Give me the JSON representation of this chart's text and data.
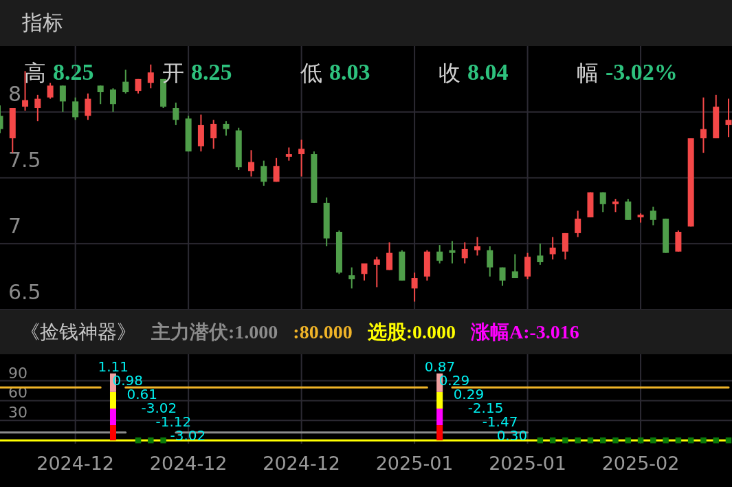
{
  "chart_data": [
    {
      "type": "candlestick",
      "title": "指标",
      "annotations": [
        "高 8.25",
        "开 8.25",
        "低 8.03",
        "收 8.04",
        "幅 -3.02%"
      ],
      "categories": [
        null,
        null,
        null,
        null,
        null,
        null,
        "2024-12",
        null,
        null,
        null,
        null,
        null,
        null,
        null,
        null,
        "2024-12",
        null,
        null,
        null,
        null,
        null,
        null,
        null,
        null,
        "2024-12",
        null,
        null,
        null,
        null,
        null,
        null,
        null,
        null,
        "2025-01",
        null,
        null,
        null,
        null,
        null,
        null,
        null,
        null,
        "2025-01",
        null,
        null,
        null,
        null,
        null,
        null,
        null,
        null,
        "2025-02",
        null,
        null,
        null,
        null,
        null,
        null,
        null
      ],
      "ohlc": [
        [
          7.97,
          8.05,
          7.84,
          7.87
        ],
        [
          7.8,
          8.03,
          7.69,
          8.03
        ],
        [
          8.04,
          8.31,
          8.01,
          8.09
        ],
        [
          8.03,
          8.13,
          7.93,
          8.1
        ],
        [
          8.11,
          8.22,
          8.1,
          8.2
        ],
        [
          8.2,
          8.2,
          8.0,
          8.08
        ],
        [
          8.08,
          8.11,
          7.94,
          7.96
        ],
        [
          7.97,
          8.14,
          7.94,
          8.1
        ],
        [
          8.2,
          8.2,
          8.06,
          8.15
        ],
        [
          8.17,
          8.18,
          8.0,
          8.06
        ],
        [
          8.23,
          8.32,
          8.14,
          8.15
        ],
        [
          8.16,
          8.25,
          8.14,
          8.25
        ],
        [
          8.22,
          8.36,
          8.18,
          8.3
        ],
        [
          8.25,
          8.25,
          8.03,
          8.04
        ],
        [
          8.03,
          8.07,
          7.9,
          7.94
        ],
        [
          7.95,
          7.97,
          7.7,
          7.7
        ],
        [
          7.74,
          7.98,
          7.7,
          7.9
        ],
        [
          7.8,
          7.94,
          7.72,
          7.91
        ],
        [
          7.91,
          7.93,
          7.82,
          7.87
        ],
        [
          7.86,
          7.88,
          7.56,
          7.58
        ],
        [
          7.55,
          7.71,
          7.51,
          7.62
        ],
        [
          7.59,
          7.63,
          7.44,
          7.47
        ],
        [
          7.47,
          7.65,
          7.47,
          7.59
        ],
        [
          7.66,
          7.73,
          7.63,
          7.68
        ],
        [
          7.68,
          7.79,
          7.51,
          7.72
        ],
        [
          7.68,
          7.7,
          7.31,
          7.31
        ],
        [
          7.31,
          7.35,
          6.98,
          7.04
        ],
        [
          7.09,
          7.1,
          6.77,
          6.78
        ],
        [
          6.76,
          6.82,
          6.66,
          6.73
        ],
        [
          6.77,
          6.85,
          6.72,
          6.85
        ],
        [
          6.84,
          6.9,
          6.67,
          6.88
        ],
        [
          6.8,
          7.01,
          6.8,
          6.93
        ],
        [
          6.94,
          6.95,
          6.72,
          6.72
        ],
        [
          6.66,
          6.78,
          6.56,
          6.74
        ],
        [
          6.75,
          6.95,
          6.72,
          6.94
        ],
        [
          6.94,
          6.99,
          6.85,
          6.87
        ],
        [
          6.95,
          7.02,
          6.85,
          6.93
        ],
        [
          6.89,
          7.01,
          6.85,
          6.96
        ],
        [
          6.95,
          7.05,
          6.91,
          6.98
        ],
        [
          6.95,
          6.98,
          6.75,
          6.82
        ],
        [
          6.82,
          6.82,
          6.68,
          6.72
        ],
        [
          6.79,
          6.92,
          6.74,
          6.74
        ],
        [
          6.75,
          6.93,
          6.73,
          6.9
        ],
        [
          6.91,
          7.0,
          6.84,
          6.86
        ],
        [
          6.92,
          7.05,
          6.88,
          6.97
        ],
        [
          6.94,
          7.08,
          6.88,
          7.08
        ],
        [
          7.08,
          7.25,
          7.05,
          7.19
        ],
        [
          7.2,
          7.39,
          7.2,
          7.39
        ],
        [
          7.39,
          7.39,
          7.24,
          7.3
        ],
        [
          7.3,
          7.34,
          7.24,
          7.32
        ],
        [
          7.32,
          7.34,
          7.18,
          7.18
        ],
        [
          7.2,
          7.23,
          7.16,
          7.22
        ],
        [
          7.25,
          7.28,
          7.14,
          7.18
        ],
        [
          7.19,
          7.19,
          6.93,
          6.93
        ],
        [
          6.94,
          7.1,
          6.94,
          7.09
        ],
        [
          7.13,
          7.8,
          7.13,
          7.8
        ],
        [
          7.8,
          8.11,
          7.69,
          7.87
        ],
        [
          7.8,
          8.13,
          7.8,
          8.04
        ],
        [
          7.9,
          8.1,
          7.81,
          7.94
        ]
      ],
      "ylim": [
        6.5,
        8.5
      ],
      "yticks": [
        6.5,
        7,
        7.5,
        8
      ],
      "grid": true,
      "tick_labels": "y"
    },
    {
      "type": "line",
      "title": "《捡钱神器》",
      "categories": [
        null,
        null,
        null,
        null,
        null,
        null,
        "2024-12",
        null,
        null,
        null,
        null,
        null,
        null,
        null,
        null,
        "2024-12",
        null,
        null,
        null,
        null,
        null,
        null,
        null,
        null,
        "2024-12",
        null,
        null,
        null,
        null,
        null,
        null,
        null,
        null,
        "2025-01",
        null,
        null,
        null,
        null,
        null,
        null,
        null,
        null,
        "2025-01",
        null,
        null,
        null,
        null,
        null,
        null,
        null,
        null,
        "2025-02",
        null,
        null,
        null,
        null,
        null,
        null,
        null
      ],
      "series": [
        {
          "type": "line",
          "name": "主力潜伏:1.000",
          "color": "#8c8c8c",
          "values": [
            12,
            12,
            12,
            12,
            12,
            12,
            12,
            12,
            12,
            12,
            12,
            null,
            null,
            null,
            12,
            12,
            12,
            12,
            12,
            12,
            12,
            12,
            12,
            12,
            12,
            12,
            12,
            12,
            12,
            12,
            12,
            12,
            12,
            12,
            12,
            12,
            12,
            12,
            12,
            12,
            12,
            12,
            12,
            null,
            null,
            null,
            null,
            null,
            null,
            null,
            null,
            null,
            null,
            null,
            null,
            null,
            null,
            null,
            null
          ]
        },
        {
          "type": "line",
          "name": ":80.000",
          "color": "#f0b428",
          "values": [
            80,
            80,
            80,
            80,
            80,
            80,
            80,
            80,
            80,
            null,
            80,
            80,
            80,
            80,
            80,
            80,
            80,
            80,
            80,
            80,
            80,
            80,
            80,
            80,
            80,
            80,
            80,
            80,
            80,
            80,
            80,
            80,
            80,
            80,
            80,
            null,
            80,
            80,
            80,
            80,
            80,
            80,
            80,
            80,
            80,
            80,
            80,
            80,
            80,
            80,
            80,
            80,
            80,
            80,
            80,
            80,
            80,
            80,
            80
          ]
        },
        {
          "type": "line",
          "name": "选股:0.000",
          "color": "#ffff00",
          "values": [
            0,
            0,
            0,
            0,
            0,
            0,
            0,
            0,
            0,
            0,
            0,
            0,
            0,
            0,
            0,
            0,
            0,
            0,
            0,
            0,
            0,
            0,
            0,
            0,
            0,
            0,
            0,
            0,
            0,
            0,
            0,
            0,
            0,
            0,
            0,
            0,
            0,
            0,
            0,
            0,
            0,
            0,
            0,
            0,
            0,
            0,
            0,
            0,
            0,
            0,
            0,
            0,
            0,
            0,
            0,
            0,
            0,
            0,
            0
          ]
        },
        {
          "type": "bar",
          "color": "#ff0000",
          "values": [
            null,
            null,
            null,
            null,
            null,
            null,
            null,
            null,
            null,
            23,
            null,
            null,
            null,
            null,
            null,
            null,
            null,
            null,
            null,
            null,
            null,
            null,
            null,
            null,
            null,
            null,
            null,
            null,
            null,
            null,
            null,
            null,
            null,
            null,
            null,
            23,
            null,
            null,
            null,
            null,
            null,
            null,
            null,
            null,
            null,
            null,
            null,
            null,
            null,
            null,
            null,
            null,
            null,
            null,
            null,
            null,
            null,
            null,
            null
          ]
        },
        {
          "type": "bar",
          "name": "涨幅A:-3.016",
          "color": "#ff00ff",
          "values": [
            null,
            null,
            null,
            null,
            null,
            null,
            null,
            null,
            null,
            25,
            null,
            null,
            null,
            null,
            null,
            null,
            null,
            null,
            null,
            null,
            null,
            null,
            null,
            null,
            null,
            null,
            null,
            null,
            null,
            null,
            null,
            null,
            null,
            null,
            null,
            25,
            null,
            null,
            null,
            null,
            null,
            null,
            null,
            null,
            null,
            null,
            null,
            null,
            null,
            null,
            null,
            null,
            null,
            null,
            null,
            null,
            null,
            null,
            null
          ]
        },
        {
          "type": "bar",
          "color": "#ffff00",
          "values": [
            null,
            null,
            null,
            null,
            null,
            null,
            null,
            null,
            null,
            25,
            null,
            null,
            null,
            null,
            null,
            null,
            null,
            null,
            null,
            null,
            null,
            null,
            null,
            null,
            null,
            null,
            null,
            null,
            null,
            null,
            null,
            null,
            null,
            null,
            null,
            25,
            null,
            null,
            null,
            null,
            null,
            null,
            null,
            null,
            null,
            null,
            null,
            null,
            null,
            null,
            null,
            null,
            null,
            null,
            null,
            null,
            null,
            null,
            null
          ]
        },
        {
          "type": "bar",
          "color": "#f0a0a0",
          "values": [
            null,
            null,
            null,
            null,
            null,
            null,
            null,
            null,
            null,
            28,
            null,
            null,
            null,
            null,
            null,
            null,
            null,
            null,
            null,
            null,
            null,
            null,
            null,
            null,
            null,
            null,
            null,
            null,
            null,
            null,
            null,
            null,
            null,
            null,
            null,
            28,
            null,
            null,
            null,
            null,
            null,
            null,
            null,
            null,
            null,
            null,
            null,
            null,
            null,
            null,
            null,
            null,
            null,
            null,
            null,
            null,
            null,
            null,
            null
          ]
        },
        {
          "type": "scatter",
          "color": "#0a7a0a",
          "marker": "square",
          "values": [
            null,
            null,
            null,
            null,
            null,
            null,
            null,
            null,
            null,
            null,
            null,
            0,
            0,
            0,
            null,
            null,
            null,
            null,
            null,
            null,
            null,
            null,
            null,
            null,
            null,
            null,
            null,
            null,
            null,
            null,
            null,
            null,
            null,
            null,
            null,
            null,
            null,
            null,
            null,
            null,
            null,
            null,
            null,
            0,
            0,
            0,
            0,
            0,
            0,
            0,
            0,
            0,
            0,
            0,
            0,
            0,
            0,
            0,
            0
          ]
        }
      ],
      "stacked": true,
      "annotations": [
        "1.11",
        "0.98",
        "0.61",
        "-3.02",
        "-1.12",
        "-3.02",
        "0.87",
        "0.29",
        "0.29",
        "-2.15",
        "-1.47",
        "0.30"
      ],
      "ylim": [
        -5,
        130
      ],
      "yticks": [
        30,
        60,
        90
      ],
      "grid": true,
      "legend": "top left"
    }
  ]
}
